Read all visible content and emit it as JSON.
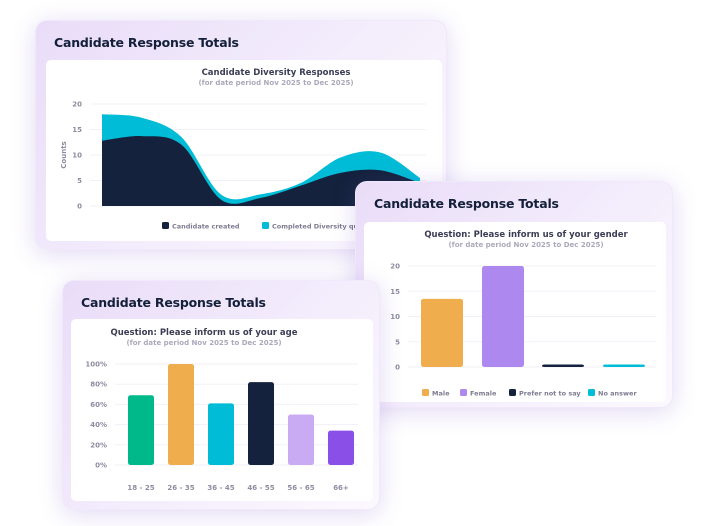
{
  "colors": {
    "navy": "#14223d",
    "cyan": "#00bcd6",
    "orange": "#efad4e",
    "lavender": "#ad89ef",
    "green": "#00b98a",
    "lightpurple": "#c9abf3",
    "purple": "#8a4fe6"
  },
  "chart_data": [
    {
      "type": "area",
      "card_title": "Candidate Response Totals",
      "title": "Candidate Diversity Responses",
      "subtitle": "(for date period Nov 2025 to Dec 2025)",
      "ylabel": "Counts",
      "ylim": [
        0,
        20
      ],
      "yticks": [
        "0",
        "5",
        "10",
        "15",
        "20"
      ],
      "stacked": true,
      "grid": true,
      "legend": "bottom",
      "series": [
        {
          "name": "Candidate created",
          "color": "#14223d",
          "values": [
            12.8,
            13.7,
            12,
            1.2,
            1.6,
            4,
            6.5,
            7,
            4.5
          ]
        },
        {
          "name": "Completed Diversity qu",
          "color": "#00bcd6",
          "values": [
            5.2,
            3.6,
            1.5,
            1,
            0.7,
            0.5,
            3,
            3.5,
            1
          ]
        }
      ]
    },
    {
      "type": "bar",
      "card_title": "Candidate Response Totals",
      "title": "Question: Please inform us of your gender",
      "subtitle": "(for date period Nov 2025 to Dec 2025)",
      "ylim": [
        0,
        20
      ],
      "yticks": [
        "0",
        "5",
        "10",
        "15",
        "20"
      ],
      "grid": true,
      "legend": "bottom",
      "categories": [
        "Male",
        "Female",
        "Prefer not to say",
        "No answer"
      ],
      "values": [
        13.5,
        20,
        0.3,
        0.3
      ],
      "colors": [
        "#efad4e",
        "#ad89ef",
        "#14223d",
        "#00bcd6"
      ]
    },
    {
      "type": "bar",
      "card_title": "Candidate Response Totals",
      "title": "Question: Please inform us of your age",
      "subtitle": "(for date period Nov 2025 to Dec 2025)",
      "ylim": [
        0,
        100
      ],
      "yticks": [
        "0%",
        "20%",
        "40%",
        "60%",
        "80%",
        "100%"
      ],
      "grid": true,
      "categories": [
        "18 - 25",
        "26 - 35",
        "36 - 45",
        "46 - 55",
        "56 - 65",
        "66+"
      ],
      "values": [
        69,
        100,
        61,
        82,
        50,
        34
      ],
      "colors": [
        "#00b98a",
        "#efad4e",
        "#00bcd6",
        "#14223d",
        "#c9abf3",
        "#8a4fe6"
      ]
    }
  ]
}
